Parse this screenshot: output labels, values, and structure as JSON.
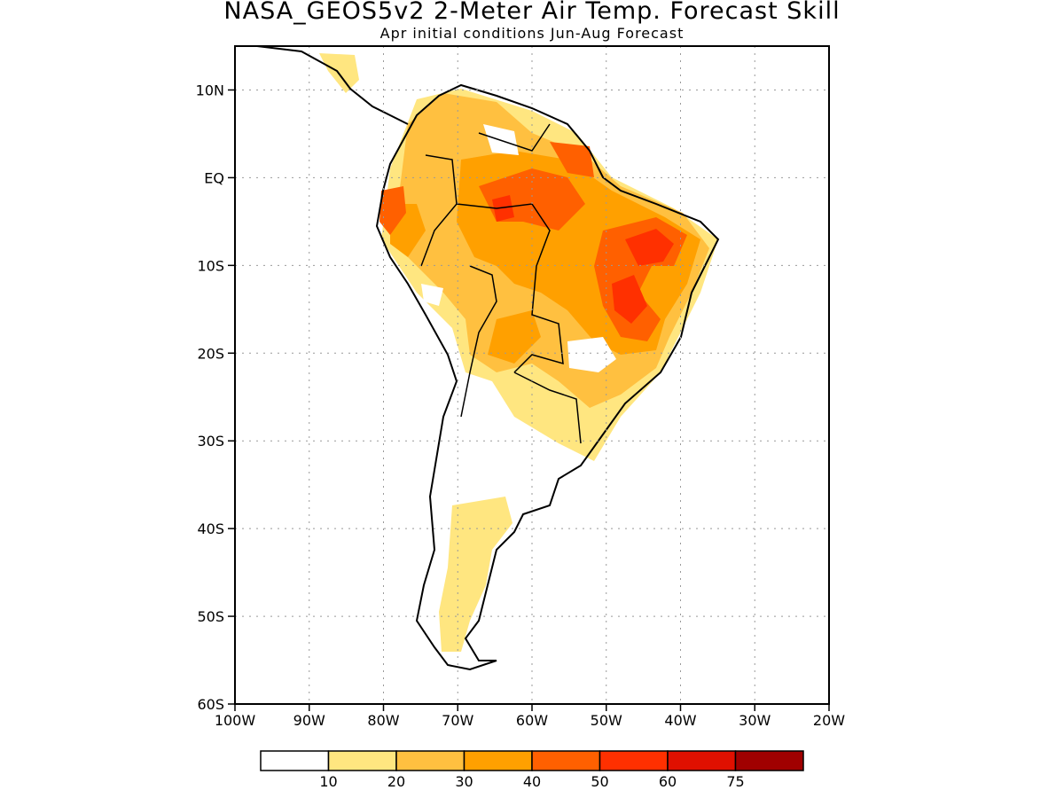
{
  "title": "NASA_GEOS5v2 2-Meter Air Temp. Forecast Skill",
  "subtitle": "Apr initial conditions  Jun-Aug Forecast",
  "map": {
    "region": "South America",
    "lon_range": [
      -100,
      -20
    ],
    "lat_range": [
      -60,
      15
    ],
    "lat_ticks": [
      {
        "value": 10,
        "label": "10N"
      },
      {
        "value": 0,
        "label": "EQ"
      },
      {
        "value": -10,
        "label": "10S"
      },
      {
        "value": -20,
        "label": "20S"
      },
      {
        "value": -30,
        "label": "30S"
      },
      {
        "value": -40,
        "label": "40S"
      },
      {
        "value": -50,
        "label": "50S"
      },
      {
        "value": -60,
        "label": "60S"
      }
    ],
    "lon_ticks": [
      {
        "value": -100,
        "label": "100W"
      },
      {
        "value": -90,
        "label": "90W"
      },
      {
        "value": -80,
        "label": "80W"
      },
      {
        "value": -70,
        "label": "70W"
      },
      {
        "value": -60,
        "label": "60W"
      },
      {
        "value": -50,
        "label": "50W"
      },
      {
        "value": -40,
        "label": "40W"
      },
      {
        "value": -30,
        "label": "30W"
      },
      {
        "value": -20,
        "label": "20W"
      }
    ],
    "grid": "dotted"
  },
  "legend": {
    "colors": [
      "#ffffff",
      "#ffe680",
      "#ffc040",
      "#ffa000",
      "#ff6000",
      "#ff3000",
      "#e01000",
      "#a00000"
    ],
    "labels": [
      "10",
      "20",
      "30",
      "40",
      "50",
      "60",
      "75"
    ]
  }
}
